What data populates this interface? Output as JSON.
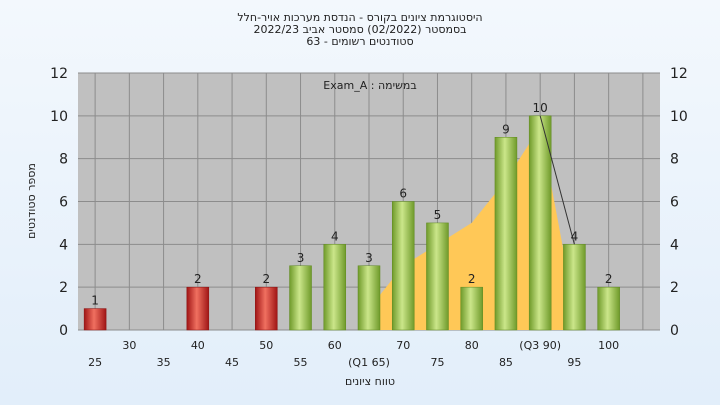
{
  "chart_data": {
    "type": "bar",
    "title_lines": [
      "היסטוגרמת ציונים בקורס - הנדסת מערכות אויר-חלל",
      "בסמסטר  (02/2022)  סמסטר אביב 2022/23",
      "סטודנטים רשומים - 63"
    ],
    "annotation": "במשימה : Exam_A",
    "xlabel": "טווח ציונים",
    "ylabel": "מספר סטודנטים",
    "ylim": [
      0,
      12
    ],
    "y_ticks": [
      0,
      2,
      4,
      6,
      8,
      10,
      12
    ],
    "grid": true,
    "x_tick_labels_row1": [
      "30",
      "40",
      "50",
      "60",
      "70",
      "80",
      "(Q3 90)",
      "100"
    ],
    "x_tick_labels_row2": [
      "25",
      "35",
      "45",
      "55",
      "(Q1 65)",
      "75",
      "85",
      "95"
    ],
    "bin_starts": [
      25,
      30,
      35,
      40,
      45,
      50,
      55,
      60,
      65,
      70,
      75,
      80,
      85,
      90,
      95,
      100
    ],
    "values": [
      1,
      0,
      0,
      2,
      0,
      2,
      3,
      4,
      3,
      6,
      5,
      2,
      9,
      10,
      4,
      2
    ],
    "data_labels": [
      "1",
      "",
      "",
      "2",
      "",
      "2",
      "3",
      "4",
      "3",
      "6",
      "5",
      "2",
      "9",
      "10",
      "4",
      "2"
    ],
    "bar_colors": [
      "red",
      "",
      "",
      "red",
      "",
      "red",
      "green",
      "green",
      "green",
      "green",
      "green",
      "green",
      "green",
      "green",
      "green",
      "green"
    ],
    "area_x": [
      65,
      70,
      75,
      80,
      85,
      90,
      95
    ],
    "area_values": [
      1,
      3,
      4,
      5,
      7,
      9.5,
      1
    ],
    "trend_x": [
      90,
      95
    ],
    "trend_values": [
      10,
      4
    ],
    "colors": {
      "plot_bg": "#c0c0c0",
      "grid": "#8c8c8c",
      "red": "#d42a2a",
      "green": "#8fbe45",
      "area": "#ffc857"
    }
  }
}
